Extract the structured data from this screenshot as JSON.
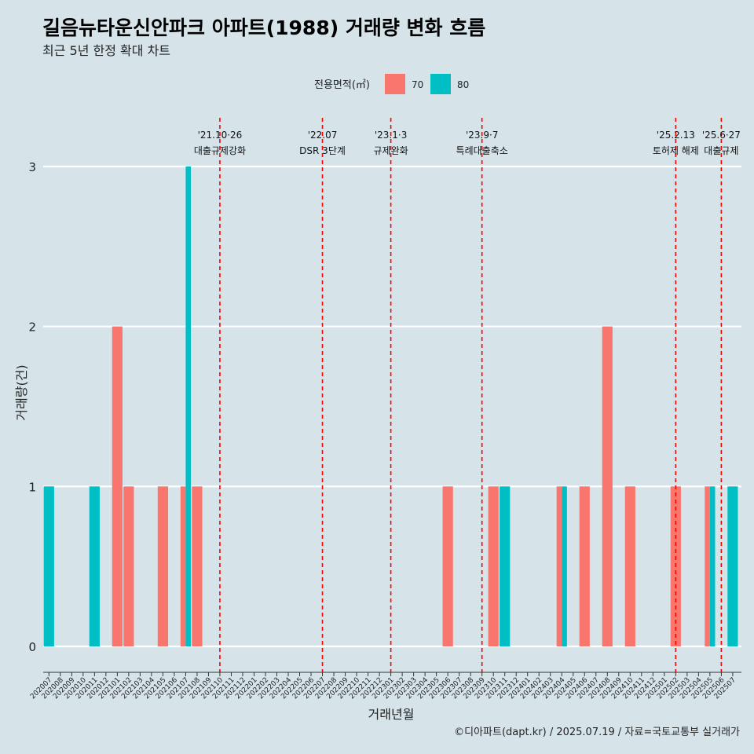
{
  "chart_data": {
    "type": "bar",
    "title": "길음뉴타운신안파크 아파트(1988) 거래량 변화 흐름",
    "subtitle": "최근 5년 한정 확대 차트",
    "xlabel": "거래년월",
    "ylabel": "거래량(건)",
    "ylim": [
      0,
      3
    ],
    "yticks": [
      "0",
      "1",
      "2",
      "3"
    ],
    "legend": {
      "title": "전용면적(㎡)",
      "position": "top",
      "entries": [
        {
          "name": "70",
          "color": "#f8766d"
        },
        {
          "name": "80",
          "color": "#00bfc4"
        }
      ]
    },
    "categories": [
      "202007",
      "202008",
      "202009",
      "202010",
      "202011",
      "202012",
      "202101",
      "202102",
      "202103",
      "202104",
      "202105",
      "202106",
      "202107",
      "202108",
      "202109",
      "202110",
      "202111",
      "202112",
      "202201",
      "202202",
      "202203",
      "202204",
      "202205",
      "202206",
      "202207",
      "202208",
      "202209",
      "202210",
      "202211",
      "202212",
      "202301",
      "202302",
      "202303",
      "202304",
      "202305",
      "202306",
      "202307",
      "202308",
      "202309",
      "202310",
      "202311",
      "202312",
      "202401",
      "202402",
      "202403",
      "202404",
      "202405",
      "202406",
      "202407",
      "202408",
      "202409",
      "202410",
      "202411",
      "202412",
      "202501",
      "202502",
      "202503",
      "202504",
      "202505",
      "202506",
      "202507"
    ],
    "series": [
      {
        "name": "70",
        "color": "#f8766d",
        "values": [
          0,
          0,
          0,
          0,
          0,
          0,
          2,
          1,
          0,
          0,
          1,
          0,
          1,
          1,
          0,
          0,
          0,
          0,
          0,
          0,
          0,
          0,
          0,
          0,
          0,
          0,
          0,
          0,
          0,
          0,
          0,
          0,
          0,
          0,
          0,
          1,
          0,
          0,
          0,
          1,
          0,
          0,
          0,
          0,
          0,
          1,
          0,
          1,
          0,
          2,
          0,
          1,
          0,
          0,
          0,
          1,
          0,
          0,
          1,
          0,
          0
        ]
      },
      {
        "name": "80",
        "color": "#00bfc4",
        "values": [
          1,
          0,
          0,
          0,
          1,
          0,
          0,
          0,
          0,
          0,
          0,
          0,
          3,
          0,
          0,
          0,
          0,
          0,
          0,
          0,
          0,
          0,
          0,
          0,
          0,
          0,
          0,
          0,
          0,
          0,
          0,
          0,
          0,
          0,
          0,
          0,
          0,
          0,
          0,
          0,
          1,
          0,
          0,
          0,
          0,
          1,
          0,
          0,
          0,
          0,
          0,
          0,
          0,
          0,
          0,
          0,
          0,
          0,
          1,
          0,
          1
        ]
      }
    ],
    "events": [
      {
        "x": "202110",
        "date": "'21.10·26",
        "label": "대출규제강화"
      },
      {
        "x": "202207",
        "date": "'22.07",
        "label": "DSR 3단계"
      },
      {
        "x": "202301",
        "date": "'23.1·3",
        "label": "규제완화"
      },
      {
        "x": "202309",
        "date": "'23.9·7",
        "label": "특례대출축소"
      },
      {
        "x": "202502",
        "date": "'25.2.13",
        "label": "토허제 해제"
      },
      {
        "x": "202506",
        "date": "'25.6·27",
        "label": "대출규제"
      }
    ],
    "event_color": "#ff0000",
    "grid": true,
    "caption": "©디아파트(dapt.kr) / 2025.07.19 / 자료=국토교통부 실거래가"
  }
}
